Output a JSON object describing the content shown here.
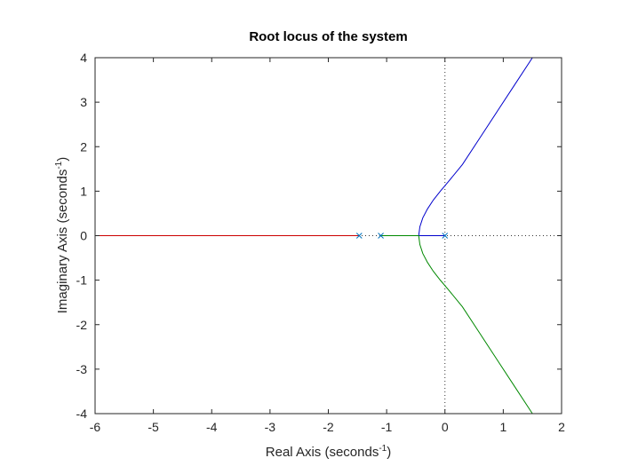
{
  "chart_data": {
    "type": "line",
    "title": "Root locus of the system",
    "xlabel": {
      "text": "Real Axis (seconds",
      "sup": "-1",
      "close": ")"
    },
    "ylabel": {
      "text": "Imaginary Axis (seconds",
      "sup": "-1",
      "close": ")"
    },
    "xlim": [
      -6,
      2
    ],
    "ylim": [
      -4,
      4
    ],
    "xticks": [
      -6,
      -5,
      -4,
      -3,
      -2,
      -1,
      0,
      1,
      2
    ],
    "yticks": [
      -4,
      -3,
      -2,
      -1,
      0,
      1,
      2,
      3,
      4
    ],
    "grid": false,
    "poles": [
      {
        "x": -1.47,
        "y": 0
      },
      {
        "x": -1.1,
        "y": 0
      },
      {
        "x": 0,
        "y": 0
      }
    ],
    "series": [
      {
        "color": "#cc0000",
        "points": [
          [
            -1.47,
            0
          ],
          [
            -6,
            0
          ]
        ]
      },
      {
        "color": "#0000cc",
        "points": [
          [
            0,
            0
          ],
          [
            -0.45,
            0
          ],
          [
            -0.43,
            0.2
          ],
          [
            -0.38,
            0.4
          ],
          [
            -0.3,
            0.6
          ],
          [
            -0.2,
            0.8
          ],
          [
            -0.08,
            1.0
          ],
          [
            0.05,
            1.2
          ],
          [
            0.3,
            1.6
          ],
          [
            0.6,
            2.2
          ],
          [
            0.9,
            2.8
          ],
          [
            1.2,
            3.4
          ],
          [
            1.5,
            4.0
          ]
        ]
      },
      {
        "color": "#008800",
        "points": [
          [
            -1.1,
            0
          ],
          [
            -0.45,
            0
          ],
          [
            -0.43,
            -0.2
          ],
          [
            -0.38,
            -0.4
          ],
          [
            -0.3,
            -0.6
          ],
          [
            -0.2,
            -0.8
          ],
          [
            -0.08,
            -1.0
          ],
          [
            0.05,
            -1.2
          ],
          [
            0.3,
            -1.6
          ],
          [
            0.6,
            -2.2
          ],
          [
            0.9,
            -2.8
          ],
          [
            1.2,
            -3.4
          ],
          [
            1.5,
            -4.0
          ]
        ]
      }
    ],
    "asymptote_lines": {
      "vertical_x": 0,
      "horizontal_y": 0
    }
  }
}
